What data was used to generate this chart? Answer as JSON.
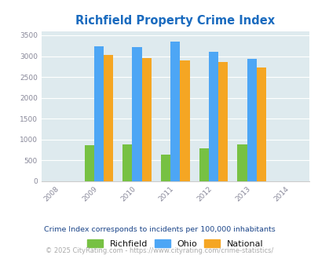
{
  "title": "Richfield Property Crime Index",
  "years": [
    2009,
    2010,
    2011,
    2012,
    2013
  ],
  "richfield": [
    860,
    880,
    640,
    790,
    880
  ],
  "ohio": [
    3240,
    3210,
    3350,
    3100,
    2930
  ],
  "national": [
    3030,
    2950,
    2900,
    2860,
    2720
  ],
  "bar_colors": {
    "richfield": "#77c143",
    "ohio": "#4da6f5",
    "national": "#f5a623"
  },
  "xlim": [
    2007.5,
    2014.5
  ],
  "ylim": [
    0,
    3600
  ],
  "yticks": [
    0,
    500,
    1000,
    1500,
    2000,
    2500,
    3000,
    3500
  ],
  "xticks": [
    2008,
    2009,
    2010,
    2011,
    2012,
    2013,
    2014
  ],
  "bg_color": "#deeaee",
  "title_color": "#1a6bbf",
  "footer_note": "Crime Index corresponds to incidents per 100,000 inhabitants",
  "copyright": "© 2025 CityRating.com - https://www.cityrating.com/crime-statistics/",
  "bar_width": 0.25,
  "legend_labels": [
    "Richfield",
    "Ohio",
    "National"
  ],
  "tick_label_color": "#888899",
  "grid_color": "#ffffff",
  "footer_color": "#1a4488",
  "copyright_color": "#aaaaaa"
}
